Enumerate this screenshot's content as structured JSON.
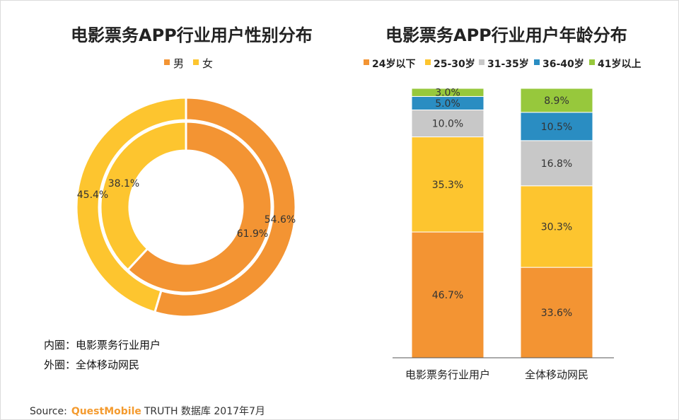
{
  "chart_data": [
    {
      "type": "donut",
      "title": "电影票务APP行业用户性别分布",
      "legend": [
        "男",
        "女"
      ],
      "series": [
        {
          "name": "内圈：电影票务行业用户",
          "ring": "inner",
          "values": [
            61.9,
            38.1
          ],
          "labels": [
            "61.9%",
            "38.1%"
          ]
        },
        {
          "name": "外圈：全体移动网民",
          "ring": "outer",
          "values": [
            54.6,
            45.4
          ],
          "labels": [
            "54.6%",
            "45.4%"
          ]
        }
      ],
      "notes": [
        "内圈：电影票务行业用户",
        "外圈：全体移动网民"
      ]
    },
    {
      "type": "stacked_bar",
      "title": "电影票务APP行业用户年龄分布",
      "categories": [
        "电影票务行业用户",
        "全体移动网民"
      ],
      "series": [
        {
          "name": "24岁以下",
          "values": [
            46.7,
            33.6
          ],
          "labels": [
            "46.7%",
            "33.6%"
          ]
        },
        {
          "name": "25-30岁",
          "values": [
            35.3,
            30.3
          ],
          "labels": [
            "35.3%",
            "30.3%"
          ]
        },
        {
          "name": "31-35岁",
          "values": [
            10.0,
            16.8
          ],
          "labels": [
            "10.0%",
            "16.8%"
          ]
        },
        {
          "name": "36-40岁",
          "values": [
            5.0,
            10.5
          ],
          "labels": [
            "5.0%",
            "10.5%"
          ]
        },
        {
          "name": "41岁以上",
          "values": [
            3.0,
            8.9
          ],
          "labels": [
            "3.0%",
            "8.9%"
          ]
        }
      ],
      "ylim": [
        0,
        100
      ]
    }
  ],
  "colors": {
    "male": "#f39433",
    "female": "#fdc52f",
    "age": [
      "#f39433",
      "#fdc52f",
      "#c8c8c8",
      "#2a8dc2",
      "#97c83c"
    ]
  },
  "source": {
    "prefix": "Source:",
    "brand": "QuestMobile",
    "suffix": "TRUTH 数据库 2017年7月"
  }
}
